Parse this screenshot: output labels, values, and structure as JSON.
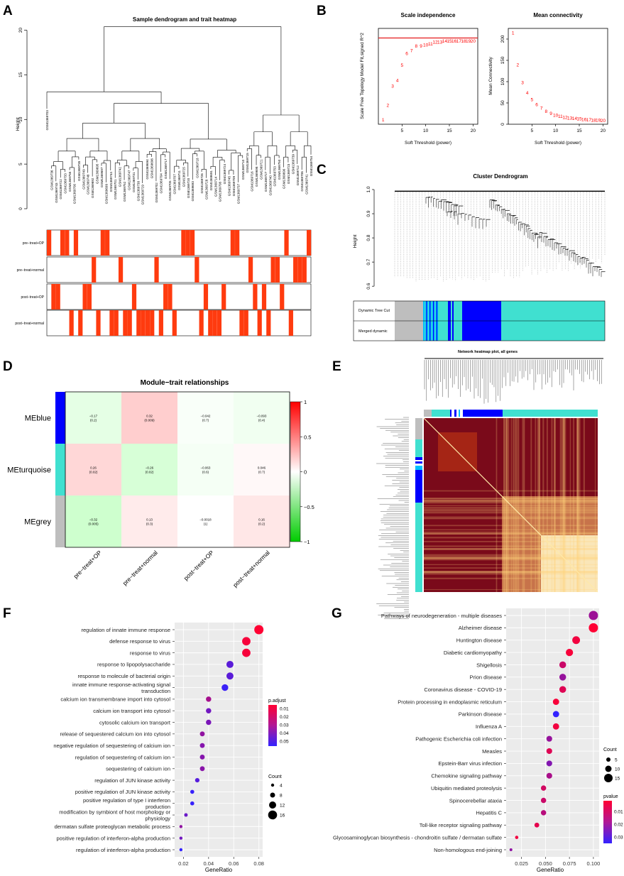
{
  "panel_labels": [
    "A",
    "B",
    "C",
    "D",
    "E",
    "F",
    "G"
  ],
  "chart_data": [
    {
      "panel": "A",
      "type": "dendrogram-heatmap",
      "title": "Sample dendrogram and trait heatmap",
      "ylabel": "Height",
      "yticks": [
        0,
        5,
        10,
        15,
        20
      ],
      "ylim": [
        0,
        21
      ],
      "samples": [
        "GSM1369703",
        "GSM1369736",
        "GSM1369743",
        "GSM1369722",
        "GSM1369733",
        "GSM1369755",
        "GSM1369700",
        "GSM1369735",
        "GSM1369749",
        "GSM1369748",
        "GSM1369692",
        "GSM1369695",
        "GSM1369697",
        "GSM1369699",
        "GSM1369744",
        "GSM1369701",
        "GSM1369742",
        "GSM1369752",
        "GSM1369747",
        "GSM1369731",
        "GSM1369738",
        "GSM1369729",
        "GSM1369694",
        "GSM1369696",
        "GSM1369702",
        "GSM1369704",
        "GSM1369717",
        "GSM1369705",
        "GSM1369707",
        "GSM1369711",
        "GSM1369725",
        "GSM1369720",
        "GSM1369693",
        "GSM1369718",
        "GSM1369726",
        "GSM1369728",
        "GSM1369691",
        "GSM1369714",
        "GSM1369708",
        "GSM1369724",
        "GSM1369745",
        "GSM1369709",
        "GSM1369737",
        "GSM1369710",
        "GSM1369715",
        "GSM1369716",
        "GSM1369698",
        "GSM1369721",
        "GSM1369727",
        "GSM1369740",
        "GSM1369753",
        "GSM1369750",
        "GSM1369690",
        "GSM1369723",
        "GSM1369739",
        "GSM1369712",
        "GSM1369706",
        "GSM1369741",
        "GSM1369754"
      ],
      "traits": [
        "pre−treat+OP",
        "pre−treat+normal",
        "post−treat+OP",
        "post−treat+normal"
      ]
    },
    {
      "panel": "B1",
      "type": "scatter",
      "title": "Scale independence",
      "xlabel": "Soft Threshold (power)",
      "ylabel": "Scale Free Topology Model Fit,signed R^2",
      "xticks": [
        5,
        10,
        15,
        20
      ],
      "xlim": [
        0,
        21
      ],
      "ylim": [
        0,
        1
      ],
      "cutoff": 0.9,
      "x": [
        1,
        2,
        3,
        4,
        5,
        6,
        7,
        8,
        9,
        10,
        11,
        12,
        13,
        14,
        15,
        16,
        17,
        18,
        19,
        20
      ],
      "y": [
        0.05,
        0.2,
        0.4,
        0.46,
        0.62,
        0.74,
        0.77,
        0.82,
        0.82,
        0.83,
        0.84,
        0.86,
        0.86,
        0.87,
        0.87,
        0.87,
        0.87,
        0.87,
        0.87,
        0.87
      ],
      "labels": [
        "1",
        "2",
        "3",
        "4",
        "5",
        "6",
        "7",
        "8",
        "9",
        "10",
        "11",
        "12",
        "13",
        "14",
        "15",
        "16",
        "17",
        "18",
        "19",
        "20"
      ]
    },
    {
      "panel": "B2",
      "type": "scatter",
      "title": "Mean connectivity",
      "xlabel": "Soft Threshold (power)",
      "ylabel": "Mean Connectivity",
      "xticks": [
        5,
        10,
        15,
        20
      ],
      "yticks": [
        0,
        50,
        100,
        150,
        200
      ],
      "xlim": [
        0,
        21
      ],
      "ylim": [
        0,
        225
      ],
      "x": [
        1,
        2,
        3,
        4,
        5,
        6,
        7,
        8,
        9,
        10,
        11,
        12,
        13,
        14,
        15,
        16,
        17,
        18,
        19,
        20
      ],
      "y": [
        215,
        140,
        98,
        74,
        58,
        47,
        38,
        31,
        26,
        22,
        19,
        17,
        15,
        14,
        13,
        12,
        11,
        10,
        10,
        9
      ],
      "labels": [
        "1",
        "2",
        "3",
        "4",
        "5",
        "6",
        "7",
        "8",
        "9",
        "10",
        "11",
        "12",
        "13",
        "14",
        "15",
        "16",
        "17",
        "18",
        "19",
        "20"
      ]
    },
    {
      "panel": "C",
      "type": "dendrogram",
      "title": "Cluster Dendrogram",
      "ylabel": "Height",
      "yticks": [
        0.6,
        0.7,
        0.8,
        0.9,
        1.0
      ],
      "tracks": [
        "Dynamic Tree Cut",
        "Merged dynamic"
      ]
    },
    {
      "panel": "D",
      "type": "heatmap",
      "title": "Module−trait relationships",
      "rows": [
        "MEblue",
        "MEturquoise",
        "MEgrey"
      ],
      "row_colors": [
        "#0000ff",
        "#40e0d0",
        "#bebebe"
      ],
      "columns": [
        "pre−treat+OP",
        "pre−treat+normal",
        "post−treat+OP",
        "post−treat+normal"
      ],
      "values": [
        [
          -0.17,
          0.32,
          -0.042,
          -0.093
        ],
        [
          0.26,
          -0.26,
          -0.063,
          0.046
        ],
        [
          -0.32,
          0.13,
          -0.0018,
          0.16
        ]
      ],
      "labels": [
        [
          "−0.17",
          "0.32",
          "−0.042",
          "−0.093"
        ],
        [
          "0.26",
          "−0.26",
          "−0.063",
          "0.046"
        ],
        [
          "−0.32",
          "0.13",
          "−0.0018",
          "0.16"
        ]
      ],
      "pvalues": [
        [
          "(0.2)",
          "(0.009)",
          "(0.7)",
          "(0.4)"
        ],
        [
          "(0.02)",
          "(0.02)",
          "(0.6)",
          "(0.7)"
        ],
        [
          "(0.005)",
          "(0.3)",
          "(1)",
          "(0.2)"
        ]
      ],
      "colorbar_ticks": [
        "1",
        "0.5",
        "0",
        "−0.5",
        "−1"
      ],
      "colorbar_values": [
        1,
        0.5,
        0,
        -0.5,
        -1
      ],
      "colorscale": [
        "#00cc00",
        "#ffffff",
        "#ff0000"
      ]
    },
    {
      "panel": "E",
      "type": "heatmap",
      "title": "Network heatmap plot, all genes"
    },
    {
      "panel": "F",
      "type": "scatter",
      "xlabel": "GeneRatio",
      "xticks": [
        0.02,
        0.04,
        0.06,
        0.08
      ],
      "xlim": [
        0.013,
        0.083
      ],
      "legend_color_title": "p.adjust",
      "legend_color_ticks": [
        "0.01",
        "0.02",
        "0.03",
        "0.04",
        "0.05"
      ],
      "legend_size_title": "Count",
      "legend_size_ticks": [
        "4",
        "8",
        "12",
        "16"
      ],
      "terms": [
        "regulation of innate immune response",
        "defense response to virus",
        "response to virus",
        "response to lipopolysaccharide",
        "response to molecule of bacterial origin",
        "innate immune response-activating signal transduction",
        "calcium ion transmembrane import into cytosol",
        "calcium ion transport into cytosol",
        "cytosolic calcium ion transport",
        "release of sequestered calcium ion into cytosol",
        "negative regulation of sequestering of calcium ion",
        "regulation of sequestering of calcium ion",
        "sequestering of calcium ion",
        "regulation of JUN kinase activity",
        "positive regulation of JUN kinase activity",
        "positive regulation of type I interferon production",
        "modification by symbiont of host morphology or physiology",
        "dermatan sulfate proteoglycan metabolic process",
        "positive regulation of interferon-alpha production",
        "regulation of interferon-alpha production"
      ],
      "term_lines": [
        [
          "regulation of innate immune response"
        ],
        [
          "defense response to virus"
        ],
        [
          "response to virus"
        ],
        [
          "response to lipopolysaccharide"
        ],
        [
          "response to molecule of bacterial origin"
        ],
        [
          "innate immune response-activating signal",
          "transduction"
        ],
        [
          "calcium ion transmembrane import into cytosol"
        ],
        [
          "calcium ion transport into cytosol"
        ],
        [
          "cytosolic calcium ion transport"
        ],
        [
          "release of sequestered calcium ion into cytosol"
        ],
        [
          "negative regulation of sequestering of calcium ion"
        ],
        [
          "regulation of sequestering of calcium ion"
        ],
        [
          "sequestering of calcium ion"
        ],
        [
          "regulation of JUN kinase activity"
        ],
        [
          "positive regulation of JUN kinase activity"
        ],
        [
          "positive regulation of type I interferon",
          "production"
        ],
        [
          "modification by symbiont of host morphology or",
          "physiology"
        ],
        [
          "dermatan sulfate proteoglycan metabolic process"
        ],
        [
          "positive regulation of interferon-alpha production"
        ],
        [
          "regulation of interferon-alpha production"
        ]
      ],
      "gene_ratio": [
        0.08,
        0.07,
        0.07,
        0.057,
        0.057,
        0.053,
        0.04,
        0.04,
        0.04,
        0.035,
        0.035,
        0.035,
        0.035,
        0.031,
        0.027,
        0.027,
        0.022,
        0.018,
        0.018,
        0.018
      ],
      "count": [
        18,
        16,
        16,
        13,
        13,
        12,
        9,
        9,
        9,
        8,
        8,
        8,
        8,
        7,
        6,
        6,
        5,
        4,
        4,
        4
      ],
      "p_adjust": [
        0.002,
        0.004,
        0.004,
        0.044,
        0.044,
        0.052,
        0.025,
        0.038,
        0.036,
        0.03,
        0.033,
        0.033,
        0.032,
        0.045,
        0.053,
        0.053,
        0.04,
        0.03,
        0.038,
        0.054
      ]
    },
    {
      "panel": "G",
      "type": "scatter",
      "xlabel": "GeneRatio",
      "xticks": [
        0.025,
        0.05,
        0.075,
        0.1
      ],
      "xtick_labels": [
        "0.025",
        "0.050",
        "0.075",
        "0.100"
      ],
      "xlim": [
        0.009,
        0.106
      ],
      "legend_color_title": "pvalue",
      "legend_color_ticks": [
        "0.01",
        "0.02",
        "0.03"
      ],
      "legend_size_title": "Count",
      "legend_size_ticks": [
        "5",
        "10",
        "15"
      ],
      "terms": [
        "Pathways of neurodegeneration - multiple diseases",
        "Alzheimer disease",
        "Huntington disease",
        "Diabetic cardiomyopathy",
        "Shigellosis",
        "Prion disease",
        "Coronavirus disease - COVID-19",
        "Protein processing in endoplasmic reticulum",
        "Parkinson disease",
        "Influenza A",
        "Pathogenic Escherichia coli infection",
        "Measles",
        "Epstein-Barr virus infection",
        "Chemokine signaling pathway",
        "Ubiquitin mediated proteolysis",
        "Spinocerebellar ataxia",
        "Hepatitis C",
        "Toll-like receptor signaling pathway",
        "Glycosaminoglycan biosynthesis - chondroitin sulfate / dermatan sulfate",
        "Non-homologous end-joining"
      ],
      "gene_ratio": [
        0.1,
        0.1,
        0.082,
        0.075,
        0.068,
        0.068,
        0.068,
        0.061,
        0.061,
        0.061,
        0.054,
        0.054,
        0.054,
        0.054,
        0.048,
        0.048,
        0.048,
        0.041,
        0.02,
        0.014
      ],
      "count": [
        15,
        15,
        12,
        11,
        10,
        10,
        10,
        9,
        9,
        9,
        8,
        8,
        8,
        8,
        7,
        7,
        7,
        6,
        3,
        2
      ],
      "p_value": [
        0.019,
        0.004,
        0.006,
        0.005,
        0.012,
        0.02,
        0.009,
        0.005,
        0.035,
        0.006,
        0.02,
        0.009,
        0.023,
        0.017,
        0.011,
        0.012,
        0.015,
        0.008,
        0.006,
        0.021
      ]
    }
  ]
}
